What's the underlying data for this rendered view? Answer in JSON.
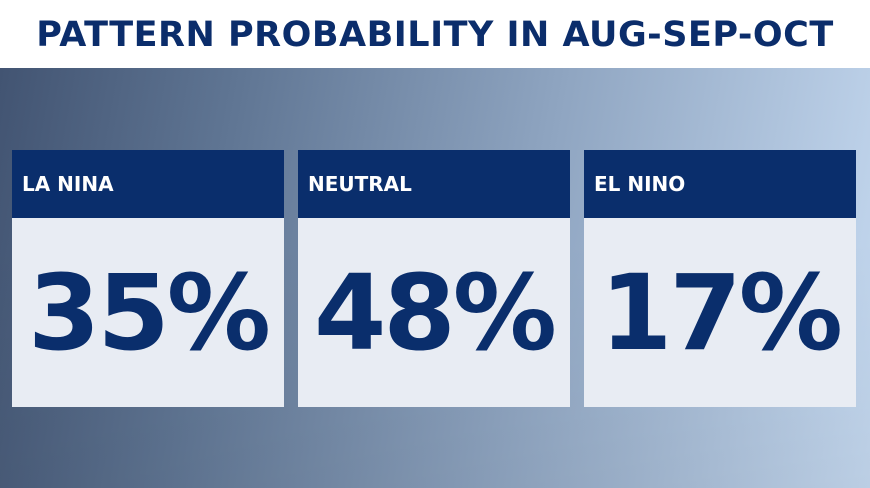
{
  "title": "PATTERN PROBABILITY IN AUG-SEP-OCT",
  "colors": {
    "navy": "#0a2e6c",
    "card_bg": "#e8ecf3",
    "title_bg": "#ffffff"
  },
  "cards": [
    {
      "label": "LA NINA",
      "value": "35%"
    },
    {
      "label": "NEUTRAL",
      "value": "48%"
    },
    {
      "label": "EL NINO",
      "value": "17%"
    }
  ]
}
